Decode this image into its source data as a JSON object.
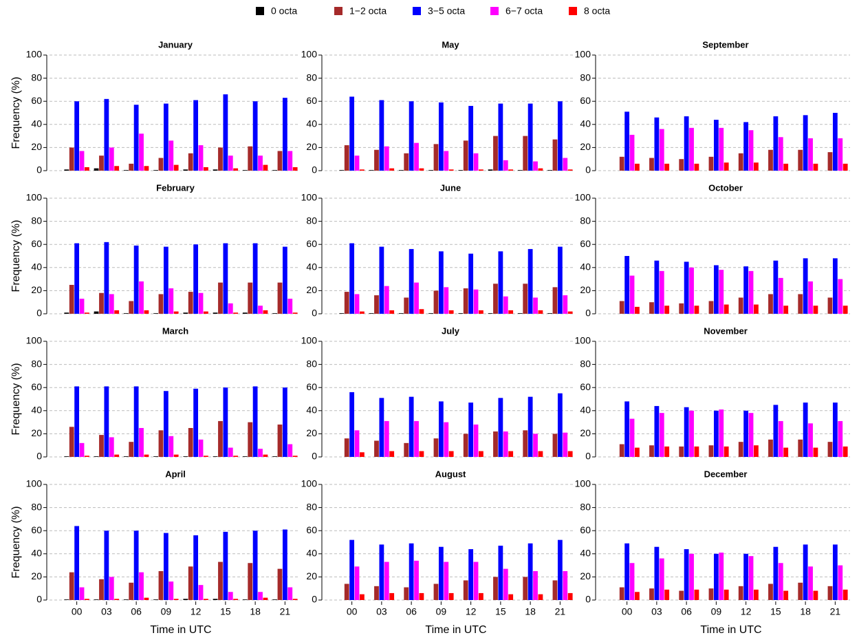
{
  "chart_data": [
    {
      "type": "bar",
      "title": "January",
      "ylabel": "Frequency (%)",
      "categories": [
        null,
        null,
        null,
        null,
        null,
        null,
        null,
        null
      ],
      "ylim": [
        0,
        100
      ],
      "yticks": [
        0,
        20,
        40,
        60,
        80,
        100
      ],
      "grid": true,
      "series": [
        {
          "name": "0 octa",
          "color": "#000000",
          "values": [
            1,
            2,
            0.5,
            0.5,
            1,
            1,
            0.5,
            0.5
          ]
        },
        {
          "name": "1−2 octa",
          "color": "#a52a2a",
          "values": [
            20,
            13,
            6,
            11,
            15,
            20,
            21,
            17
          ]
        },
        {
          "name": "3−5 octa",
          "color": "#0000ff",
          "values": [
            60,
            62,
            57,
            58,
            61,
            66,
            60,
            63
          ]
        },
        {
          "name": "6−7 octa",
          "color": "#ff00ff",
          "values": [
            17,
            20,
            32,
            26,
            22,
            13,
            13,
            17
          ]
        },
        {
          "name": "8 octa",
          "color": "#ff0000",
          "values": [
            3,
            4,
            4,
            5,
            3,
            2,
            5,
            3
          ]
        }
      ]
    },
    {
      "type": "bar",
      "title": "February",
      "ylabel": "Frequency (%)",
      "categories": [
        null,
        null,
        null,
        null,
        null,
        null,
        null,
        null
      ],
      "ylim": [
        0,
        100
      ],
      "yticks": [
        0,
        20,
        40,
        60,
        80,
        100
      ],
      "grid": true,
      "series": [
        {
          "color": "#000000",
          "values": [
            1,
            2,
            0.5,
            0.5,
            1,
            1,
            1,
            0.5
          ]
        },
        {
          "color": "#a52a2a",
          "values": [
            25,
            18,
            11,
            17,
            19,
            27,
            27,
            27
          ]
        },
        {
          "color": "#0000ff",
          "values": [
            61,
            62,
            59,
            58,
            60,
            61,
            61,
            58
          ]
        },
        {
          "color": "#ff00ff",
          "values": [
            13,
            17,
            28,
            22,
            18,
            9,
            7,
            13
          ]
        },
        {
          "color": "#ff0000",
          "values": [
            1,
            3,
            3,
            2,
            2,
            1,
            3,
            1
          ]
        }
      ]
    },
    {
      "type": "bar",
      "title": "March",
      "ylabel": "Frequency (%)",
      "categories": [
        null,
        null,
        null,
        null,
        null,
        null,
        null,
        null
      ],
      "ylim": [
        0,
        100
      ],
      "yticks": [
        0,
        20,
        40,
        60,
        80,
        100
      ],
      "grid": true,
      "series": [
        {
          "color": "#000000",
          "values": [
            0.5,
            0.5,
            0.5,
            0.5,
            0.5,
            0.5,
            0.5,
            0.5
          ]
        },
        {
          "color": "#a52a2a",
          "values": [
            26,
            19,
            13,
            23,
            25,
            31,
            30,
            28
          ]
        },
        {
          "color": "#0000ff",
          "values": [
            61,
            61,
            61,
            57,
            59,
            60,
            61,
            60
          ]
        },
        {
          "color": "#ff00ff",
          "values": [
            12,
            17,
            25,
            18,
            15,
            8,
            7,
            11
          ]
        },
        {
          "color": "#ff0000",
          "values": [
            1,
            2,
            2,
            2,
            1,
            1,
            2,
            1
          ]
        }
      ]
    },
    {
      "type": "bar",
      "title": "April",
      "ylabel": "Frequency (%)",
      "xlabel": "Time in UTC",
      "categories": [
        "00",
        "03",
        "06",
        "09",
        "12",
        "15",
        "18",
        "21"
      ],
      "ylim": [
        0,
        100
      ],
      "yticks": [
        0,
        20,
        40,
        60,
        80,
        100
      ],
      "grid": true,
      "series": [
        {
          "color": "#000000",
          "values": [
            0.5,
            0.5,
            0.5,
            0.5,
            1,
            1,
            0.5,
            0.5
          ]
        },
        {
          "color": "#a52a2a",
          "values": [
            24,
            18,
            15,
            25,
            29,
            33,
            32,
            27
          ]
        },
        {
          "color": "#0000ff",
          "values": [
            64,
            60,
            60,
            58,
            56,
            59,
            60,
            61
          ]
        },
        {
          "color": "#ff00ff",
          "values": [
            11,
            20,
            24,
            16,
            13,
            7,
            7,
            11
          ]
        },
        {
          "color": "#ff0000",
          "values": [
            1,
            1,
            2,
            1,
            1,
            1,
            2,
            1
          ]
        }
      ]
    },
    {
      "type": "bar",
      "title": "May",
      "categories": [
        null,
        null,
        null,
        null,
        null,
        null,
        null,
        null
      ],
      "ylim": [
        0,
        100
      ],
      "yticks": [
        0,
        20,
        40,
        60,
        80,
        100
      ],
      "grid": true,
      "series": [
        {
          "color": "#000000",
          "values": [
            0.5,
            0.5,
            0.5,
            0.5,
            0.5,
            1,
            0.5,
            0.5
          ]
        },
        {
          "color": "#a52a2a",
          "values": [
            22,
            18,
            15,
            23,
            26,
            30,
            30,
            27
          ]
        },
        {
          "color": "#0000ff",
          "values": [
            64,
            61,
            60,
            59,
            56,
            58,
            58,
            60
          ]
        },
        {
          "color": "#ff00ff",
          "values": [
            13,
            21,
            24,
            17,
            15,
            9,
            8,
            11
          ]
        },
        {
          "color": "#ff0000",
          "values": [
            1,
            2,
            2,
            1,
            1,
            1,
            2,
            1
          ]
        }
      ]
    },
    {
      "type": "bar",
      "title": "June",
      "categories": [
        null,
        null,
        null,
        null,
        null,
        null,
        null,
        null
      ],
      "ylim": [
        0,
        100
      ],
      "yticks": [
        0,
        20,
        40,
        60,
        80,
        100
      ],
      "grid": true,
      "series": [
        {
          "color": "#000000",
          "values": [
            0.5,
            0.5,
            0.5,
            0.5,
            0.5,
            0.5,
            0.5,
            0.5
          ]
        },
        {
          "color": "#a52a2a",
          "values": [
            19,
            16,
            14,
            20,
            22,
            26,
            26,
            23
          ]
        },
        {
          "color": "#0000ff",
          "values": [
            61,
            58,
            56,
            54,
            52,
            54,
            56,
            58
          ]
        },
        {
          "color": "#ff00ff",
          "values": [
            17,
            24,
            27,
            23,
            21,
            15,
            14,
            16
          ]
        },
        {
          "color": "#ff0000",
          "values": [
            2,
            3,
            4,
            3,
            3,
            3,
            3,
            2
          ]
        }
      ]
    },
    {
      "type": "bar",
      "title": "July",
      "categories": [
        null,
        null,
        null,
        null,
        null,
        null,
        null,
        null
      ],
      "ylim": [
        0,
        100
      ],
      "yticks": [
        0,
        20,
        40,
        60,
        80,
        100
      ],
      "grid": true,
      "series": [
        {
          "color": "#000000",
          "values": [
            0,
            0,
            0,
            0,
            0,
            0,
            0,
            0
          ]
        },
        {
          "color": "#a52a2a",
          "values": [
            16,
            14,
            12,
            16,
            20,
            22,
            23,
            20
          ]
        },
        {
          "color": "#0000ff",
          "values": [
            56,
            51,
            52,
            48,
            47,
            51,
            52,
            55
          ]
        },
        {
          "color": "#ff00ff",
          "values": [
            23,
            31,
            31,
            30,
            28,
            22,
            20,
            21
          ]
        },
        {
          "color": "#ff0000",
          "values": [
            4,
            5,
            5,
            5,
            5,
            5,
            5,
            5
          ]
        }
      ]
    },
    {
      "type": "bar",
      "title": "August",
      "xlabel": "Time in UTC",
      "categories": [
        "00",
        "03",
        "06",
        "09",
        "12",
        "15",
        "18",
        "21"
      ],
      "ylim": [
        0,
        100
      ],
      "yticks": [
        0,
        20,
        40,
        60,
        80,
        100
      ],
      "grid": true,
      "series": [
        {
          "color": "#000000",
          "values": [
            0,
            0,
            0,
            0,
            0,
            0,
            0,
            0
          ]
        },
        {
          "color": "#a52a2a",
          "values": [
            14,
            12,
            11,
            14,
            17,
            20,
            20,
            17
          ]
        },
        {
          "color": "#0000ff",
          "values": [
            52,
            48,
            49,
            46,
            44,
            47,
            49,
            52
          ]
        },
        {
          "color": "#ff00ff",
          "values": [
            29,
            33,
            34,
            33,
            33,
            27,
            25,
            25
          ]
        },
        {
          "color": "#ff0000",
          "values": [
            5,
            6,
            6,
            6,
            6,
            5,
            5,
            6
          ]
        }
      ]
    },
    {
      "type": "bar",
      "title": "September",
      "categories": [
        null,
        null,
        null,
        null,
        null,
        null,
        null,
        null
      ],
      "ylim": [
        0,
        100
      ],
      "yticks": [
        0,
        20,
        40,
        60,
        80,
        100
      ],
      "grid": true,
      "series": [
        {
          "color": "#000000",
          "values": [
            0,
            0,
            0,
            0,
            0,
            0,
            0,
            0
          ]
        },
        {
          "color": "#a52a2a",
          "values": [
            12,
            11,
            10,
            12,
            15,
            18,
            18,
            16
          ]
        },
        {
          "color": "#0000ff",
          "values": [
            51,
            46,
            47,
            44,
            42,
            47,
            48,
            50
          ]
        },
        {
          "color": "#ff00ff",
          "values": [
            31,
            36,
            37,
            37,
            35,
            29,
            28,
            28
          ]
        },
        {
          "color": "#ff0000",
          "values": [
            6,
            6,
            6,
            7,
            7,
            6,
            6,
            6
          ]
        }
      ]
    },
    {
      "type": "bar",
      "title": "October",
      "categories": [
        null,
        null,
        null,
        null,
        null,
        null,
        null,
        null
      ],
      "ylim": [
        0,
        100
      ],
      "yticks": [
        0,
        20,
        40,
        60,
        80,
        100
      ],
      "grid": true,
      "series": [
        {
          "color": "#000000",
          "values": [
            0,
            0,
            0,
            0,
            0,
            0,
            0,
            0
          ]
        },
        {
          "color": "#a52a2a",
          "values": [
            11,
            10,
            9,
            11,
            14,
            17,
            17,
            14
          ]
        },
        {
          "color": "#0000ff",
          "values": [
            50,
            46,
            45,
            42,
            41,
            46,
            48,
            48
          ]
        },
        {
          "color": "#ff00ff",
          "values": [
            33,
            37,
            40,
            38,
            37,
            31,
            28,
            30
          ]
        },
        {
          "color": "#ff0000",
          "values": [
            6,
            7,
            7,
            8,
            8,
            7,
            7,
            7
          ]
        }
      ]
    },
    {
      "type": "bar",
      "title": "November",
      "categories": [
        null,
        null,
        null,
        null,
        null,
        null,
        null,
        null
      ],
      "ylim": [
        0,
        100
      ],
      "yticks": [
        0,
        20,
        40,
        60,
        80,
        100
      ],
      "grid": true,
      "series": [
        {
          "color": "#000000",
          "values": [
            0,
            0,
            0,
            0,
            0,
            0,
            0,
            0
          ]
        },
        {
          "color": "#a52a2a",
          "values": [
            11,
            10,
            9,
            10,
            13,
            15,
            15,
            13
          ]
        },
        {
          "color": "#0000ff",
          "values": [
            48,
            44,
            43,
            40,
            40,
            45,
            47,
            47
          ]
        },
        {
          "color": "#ff00ff",
          "values": [
            33,
            38,
            40,
            41,
            38,
            31,
            29,
            31
          ]
        },
        {
          "color": "#ff0000",
          "values": [
            8,
            9,
            9,
            9,
            10,
            8,
            8,
            9
          ]
        }
      ]
    },
    {
      "type": "bar",
      "title": "December",
      "xlabel": "Time in UTC",
      "categories": [
        "00",
        "03",
        "06",
        "09",
        "12",
        "15",
        "18",
        "21"
      ],
      "ylim": [
        0,
        100
      ],
      "yticks": [
        0,
        20,
        40,
        60,
        80,
        100
      ],
      "grid": true,
      "series": [
        {
          "color": "#000000",
          "values": [
            0,
            0,
            0,
            0,
            0,
            0,
            0,
            0
          ]
        },
        {
          "color": "#a52a2a",
          "values": [
            11,
            10,
            8,
            10,
            12,
            14,
            15,
            12
          ]
        },
        {
          "color": "#0000ff",
          "values": [
            49,
            46,
            44,
            40,
            40,
            46,
            48,
            48
          ]
        },
        {
          "color": "#ff00ff",
          "values": [
            32,
            36,
            40,
            41,
            38,
            32,
            29,
            30
          ]
        },
        {
          "color": "#ff0000",
          "values": [
            7,
            9,
            9,
            9,
            9,
            8,
            8,
            9
          ]
        }
      ]
    }
  ]
}
